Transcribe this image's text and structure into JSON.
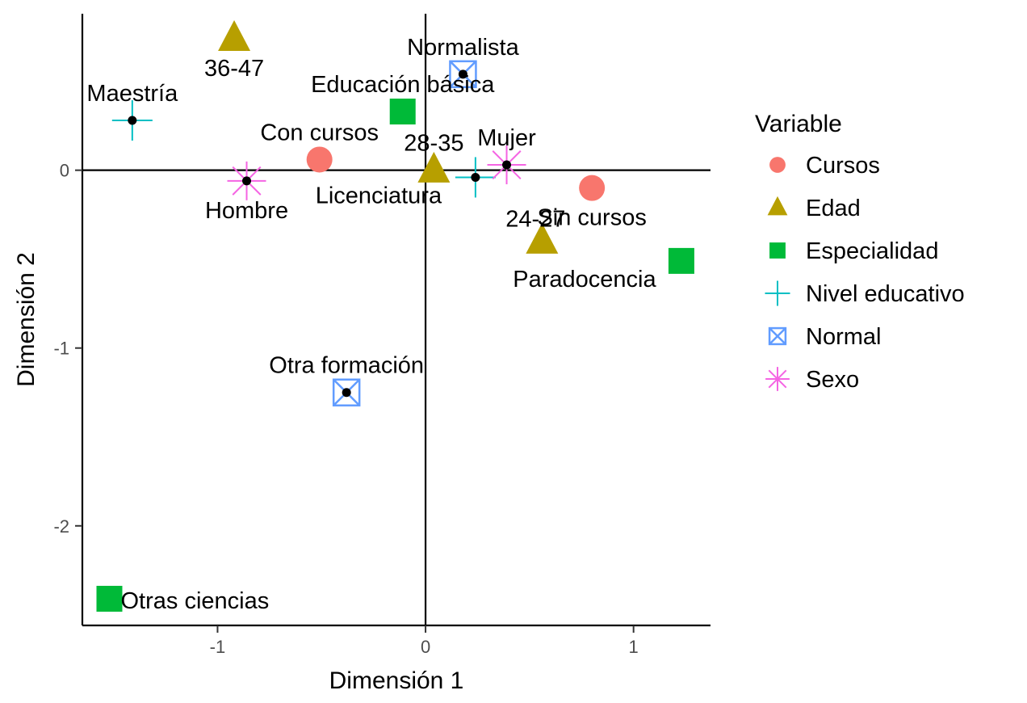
{
  "chart_data": {
    "type": "scatter",
    "title": "",
    "xlabel": "Dimensión 1",
    "ylabel": "Dimensión 2",
    "xlim": [
      -1.65,
      1.37
    ],
    "ylim": [
      -2.56,
      0.88
    ],
    "xticks": [
      {
        "value": -1,
        "label": "-1"
      },
      {
        "value": 0,
        "label": "0"
      },
      {
        "value": 1,
        "label": "1"
      }
    ],
    "yticks": [
      {
        "value": 0,
        "label": "0"
      },
      {
        "value": -1,
        "label": "-1"
      },
      {
        "value": -2,
        "label": "-2"
      }
    ],
    "reference_lines": {
      "x": 0,
      "y": 0
    },
    "legend": {
      "title": "Variable",
      "placement": "right",
      "entries": [
        {
          "name": "Cursos",
          "shape": "circle",
          "color": "#F8766D"
        },
        {
          "name": "Edad",
          "shape": "triangle",
          "color": "#B79F00"
        },
        {
          "name": "Especialidad",
          "shape": "square",
          "color": "#00BA38"
        },
        {
          "name": "Nivel educativo",
          "shape": "plus",
          "color": "#00BFC4"
        },
        {
          "name": "Normal",
          "shape": "boxcross",
          "color": "#619CFF"
        },
        {
          "name": "Sexo",
          "shape": "asterisk",
          "color": "#F564E3"
        }
      ]
    },
    "points": [
      {
        "label": "Con cursos",
        "group": "Cursos",
        "x": -0.51,
        "y": 0.06,
        "label_pos": "above"
      },
      {
        "label": "Sin cursos",
        "group": "Cursos",
        "x": 0.8,
        "y": -0.1,
        "label_pos": "below"
      },
      {
        "label": "36-47",
        "group": "Edad",
        "x": -0.92,
        "y": 0.74,
        "label_pos": "below"
      },
      {
        "label": "28-35",
        "group": "Edad",
        "x": 0.04,
        "y": 0.0,
        "label_pos": "above"
      },
      {
        "label": "24-27",
        "group": "Edad",
        "x": 0.56,
        "y": -0.4,
        "label_pos": "above-left"
      },
      {
        "label": "Educación básica",
        "group": "Especialidad",
        "x": -0.11,
        "y": 0.33,
        "label_pos": "above"
      },
      {
        "label": "Paradocencia",
        "group": "Especialidad",
        "x": 1.23,
        "y": -0.51,
        "label_pos": "below-left"
      },
      {
        "label": "Otras ciencias",
        "group": "Especialidad",
        "x": -1.52,
        "y": -2.41,
        "label_pos": "right"
      },
      {
        "label": "Maestría",
        "group": "Nivel educativo",
        "x": -1.41,
        "y": 0.28,
        "label_pos": "above"
      },
      {
        "label": "Licenciatura",
        "group": "Nivel educativo",
        "x": 0.24,
        "y": -0.04,
        "label_pos": "below-left"
      },
      {
        "label": "Normalista",
        "group": "Normal",
        "x": 0.18,
        "y": 0.54,
        "label_pos": "above"
      },
      {
        "label": "Otra formación",
        "group": "Normal",
        "x": -0.38,
        "y": -1.25,
        "label_pos": "above"
      },
      {
        "label": "Hombre",
        "group": "Sexo",
        "x": -0.86,
        "y": -0.06,
        "label_pos": "below"
      },
      {
        "label": "Mujer",
        "group": "Sexo",
        "x": 0.39,
        "y": 0.03,
        "label_pos": "above"
      }
    ]
  }
}
